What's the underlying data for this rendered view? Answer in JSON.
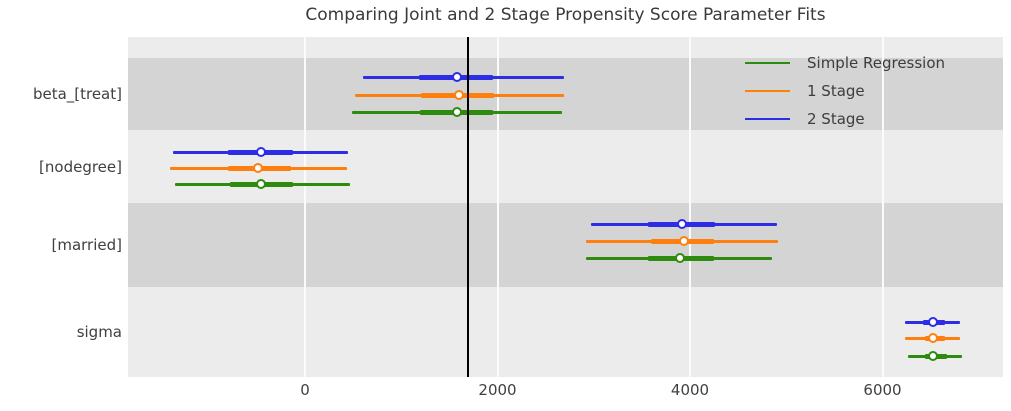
{
  "title": "Comparing Joint and 2 Stage Propensity Score Parameter Fits",
  "legend": [
    {
      "label": "Simple Regression",
      "color": "#2e8b0e"
    },
    {
      "label": "1 Stage",
      "color": "#ff7f0e"
    },
    {
      "label": "2 Stage",
      "color": "#2d2de6"
    }
  ],
  "colors": {
    "plot_background": "#ececec",
    "shaded_band": "#d4d4d4",
    "gridline": "#fbfbfb",
    "reference_line": "#000000",
    "text": "#404040"
  },
  "chart_data": {
    "type": "forest",
    "title": "Comparing Joint and 2 Stage Propensity Score Parameter Fits",
    "xlabel": "",
    "ylabel": "",
    "xticks": [
      0,
      2000,
      4000,
      6000
    ],
    "xlim": [
      -1840,
      7250
    ],
    "reference_vline": 1690,
    "grid": "vertical-white",
    "legend_position": "upper right inside",
    "rows": [
      {
        "param": "beta_[treat]",
        "shaded": true,
        "series": [
          {
            "name": "2 Stage",
            "ci": [
              600,
              2690
            ],
            "hdi50": [
              1185,
              1950
            ],
            "median": 1580
          },
          {
            "name": "1 Stage",
            "ci": [
              520,
              2690
            ],
            "hdi50": [
              1205,
              1965
            ],
            "median": 1600
          },
          {
            "name": "Simple Regression",
            "ci": [
              490,
              2670
            ],
            "hdi50": [
              1195,
              1950
            ],
            "median": 1580
          }
        ]
      },
      {
        "param": "[nodegree]",
        "shaded": false,
        "series": [
          {
            "name": "2 Stage",
            "ci": [
              -1370,
              450
            ],
            "hdi50": [
              -800,
              -125
            ],
            "median": -455
          },
          {
            "name": "1 Stage",
            "ci": [
              -1400,
              435
            ],
            "hdi50": [
              -800,
              -145
            ],
            "median": -480
          },
          {
            "name": "Simple Regression",
            "ci": [
              -1350,
              470
            ],
            "hdi50": [
              -780,
              -125
            ],
            "median": -455
          }
        ]
      },
      {
        "param": "[married]",
        "shaded": true,
        "series": [
          {
            "name": "2 Stage",
            "ci": [
              2970,
              4905
            ],
            "hdi50": [
              3565,
              4260
            ],
            "median": 3925
          },
          {
            "name": "1 Stage",
            "ci": [
              2920,
              4915
            ],
            "hdi50": [
              3595,
              4250
            ],
            "median": 3940
          },
          {
            "name": "Simple Regression",
            "ci": [
              2920,
              4850
            ],
            "hdi50": [
              3565,
              4250
            ],
            "median": 3905
          }
        ]
      },
      {
        "param": "sigma",
        "shaded": false,
        "series": [
          {
            "name": "2 Stage",
            "ci": [
              6235,
              6805
            ],
            "hdi50": [
              6420,
              6650
            ],
            "median": 6535
          },
          {
            "name": "1 Stage",
            "ci": [
              6235,
              6805
            ],
            "hdi50": [
              6440,
              6650
            ],
            "median": 6525
          },
          {
            "name": "Simple Regression",
            "ci": [
              6265,
              6825
            ],
            "hdi50": [
              6440,
              6670
            ],
            "median": 6535
          }
        ]
      }
    ]
  }
}
